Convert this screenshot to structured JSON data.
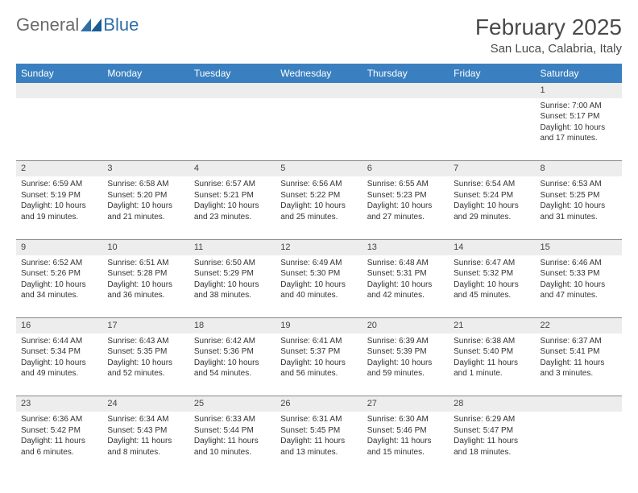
{
  "brand": {
    "general": "General",
    "blue": "Blue"
  },
  "title": "February 2025",
  "location": "San Luca, Calabria, Italy",
  "colors": {
    "header_bg": "#3a80c0",
    "header_fg": "#ffffff",
    "daynum_bg": "#ededed",
    "border": "#888888",
    "text": "#333333",
    "title": "#4a4a4a",
    "logo_gray": "#6a6a6a",
    "logo_blue": "#2f6fa7"
  },
  "dayHeaders": [
    "Sunday",
    "Monday",
    "Tuesday",
    "Wednesday",
    "Thursday",
    "Friday",
    "Saturday"
  ],
  "weeks": [
    {
      "nums": [
        "",
        "",
        "",
        "",
        "",
        "",
        "1"
      ],
      "cells": [
        null,
        null,
        null,
        null,
        null,
        null,
        {
          "sunrise": "7:00 AM",
          "sunset": "5:17 PM",
          "daylight": "10 hours and 17 minutes."
        }
      ]
    },
    {
      "nums": [
        "2",
        "3",
        "4",
        "5",
        "6",
        "7",
        "8"
      ],
      "cells": [
        {
          "sunrise": "6:59 AM",
          "sunset": "5:19 PM",
          "daylight": "10 hours and 19 minutes."
        },
        {
          "sunrise": "6:58 AM",
          "sunset": "5:20 PM",
          "daylight": "10 hours and 21 minutes."
        },
        {
          "sunrise": "6:57 AM",
          "sunset": "5:21 PM",
          "daylight": "10 hours and 23 minutes."
        },
        {
          "sunrise": "6:56 AM",
          "sunset": "5:22 PM",
          "daylight": "10 hours and 25 minutes."
        },
        {
          "sunrise": "6:55 AM",
          "sunset": "5:23 PM",
          "daylight": "10 hours and 27 minutes."
        },
        {
          "sunrise": "6:54 AM",
          "sunset": "5:24 PM",
          "daylight": "10 hours and 29 minutes."
        },
        {
          "sunrise": "6:53 AM",
          "sunset": "5:25 PM",
          "daylight": "10 hours and 31 minutes."
        }
      ]
    },
    {
      "nums": [
        "9",
        "10",
        "11",
        "12",
        "13",
        "14",
        "15"
      ],
      "cells": [
        {
          "sunrise": "6:52 AM",
          "sunset": "5:26 PM",
          "daylight": "10 hours and 34 minutes."
        },
        {
          "sunrise": "6:51 AM",
          "sunset": "5:28 PM",
          "daylight": "10 hours and 36 minutes."
        },
        {
          "sunrise": "6:50 AM",
          "sunset": "5:29 PM",
          "daylight": "10 hours and 38 minutes."
        },
        {
          "sunrise": "6:49 AM",
          "sunset": "5:30 PM",
          "daylight": "10 hours and 40 minutes."
        },
        {
          "sunrise": "6:48 AM",
          "sunset": "5:31 PM",
          "daylight": "10 hours and 42 minutes."
        },
        {
          "sunrise": "6:47 AM",
          "sunset": "5:32 PM",
          "daylight": "10 hours and 45 minutes."
        },
        {
          "sunrise": "6:46 AM",
          "sunset": "5:33 PM",
          "daylight": "10 hours and 47 minutes."
        }
      ]
    },
    {
      "nums": [
        "16",
        "17",
        "18",
        "19",
        "20",
        "21",
        "22"
      ],
      "cells": [
        {
          "sunrise": "6:44 AM",
          "sunset": "5:34 PM",
          "daylight": "10 hours and 49 minutes."
        },
        {
          "sunrise": "6:43 AM",
          "sunset": "5:35 PM",
          "daylight": "10 hours and 52 minutes."
        },
        {
          "sunrise": "6:42 AM",
          "sunset": "5:36 PM",
          "daylight": "10 hours and 54 minutes."
        },
        {
          "sunrise": "6:41 AM",
          "sunset": "5:37 PM",
          "daylight": "10 hours and 56 minutes."
        },
        {
          "sunrise": "6:39 AM",
          "sunset": "5:39 PM",
          "daylight": "10 hours and 59 minutes."
        },
        {
          "sunrise": "6:38 AM",
          "sunset": "5:40 PM",
          "daylight": "11 hours and 1 minute."
        },
        {
          "sunrise": "6:37 AM",
          "sunset": "5:41 PM",
          "daylight": "11 hours and 3 minutes."
        }
      ]
    },
    {
      "nums": [
        "23",
        "24",
        "25",
        "26",
        "27",
        "28",
        ""
      ],
      "cells": [
        {
          "sunrise": "6:36 AM",
          "sunset": "5:42 PM",
          "daylight": "11 hours and 6 minutes."
        },
        {
          "sunrise": "6:34 AM",
          "sunset": "5:43 PM",
          "daylight": "11 hours and 8 minutes."
        },
        {
          "sunrise": "6:33 AM",
          "sunset": "5:44 PM",
          "daylight": "11 hours and 10 minutes."
        },
        {
          "sunrise": "6:31 AM",
          "sunset": "5:45 PM",
          "daylight": "11 hours and 13 minutes."
        },
        {
          "sunrise": "6:30 AM",
          "sunset": "5:46 PM",
          "daylight": "11 hours and 15 minutes."
        },
        {
          "sunrise": "6:29 AM",
          "sunset": "5:47 PM",
          "daylight": "11 hours and 18 minutes."
        },
        null
      ]
    }
  ],
  "labels": {
    "sunrise": "Sunrise:",
    "sunset": "Sunset:",
    "daylight": "Daylight:"
  }
}
